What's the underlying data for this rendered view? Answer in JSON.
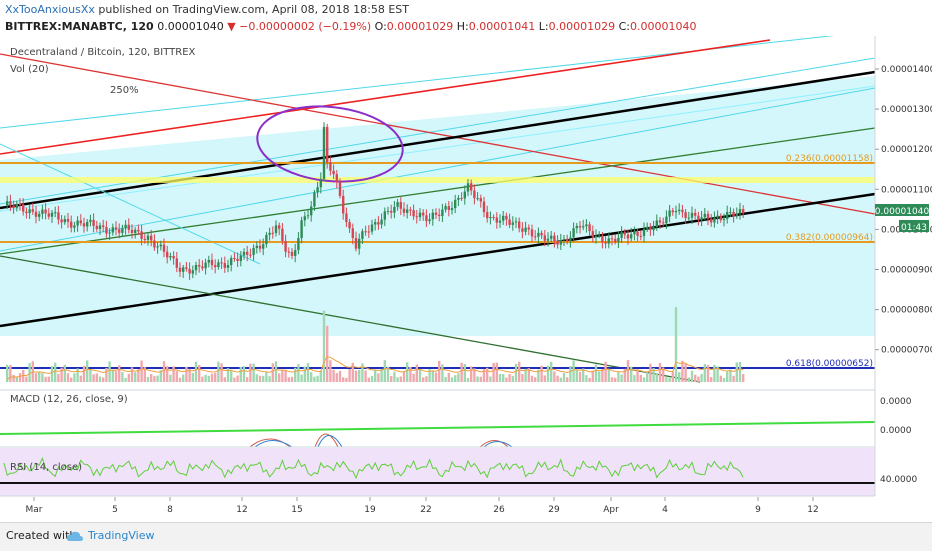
{
  "header": {
    "author": "XxTooAnxiousXx",
    "published_text": "published on TradingView.com, April 08, 2018 18:58 EST",
    "symbol": "BITTREX:MANABTC, 120",
    "last": "0.00001040",
    "change": "−0.00000002 (−0.19%)",
    "o_label": "O:",
    "o": "0.00001029",
    "h_label": "H:",
    "h": "0.00001041",
    "l_label": "L:",
    "l": "0.00001029",
    "c_label": "C:",
    "c": "0.00001040"
  },
  "footer": {
    "created_with": "Created with",
    "brand": "TradingView"
  },
  "colors": {
    "up": "#2e8b57",
    "down": "#d84451",
    "fib_orange": "#e69b1e",
    "fib_blue": "#1f2fb5",
    "channel_cyan": "#5fd6e8",
    "fill_cyan": "#d4f7fb",
    "rsi_line": "#5fcf3a",
    "rsi_bg": "#efe2f9",
    "macd_line": "#3fdc3f"
  },
  "chart_data": {
    "type": "candlestick",
    "title": "Decentraland / Bitcoin, 120, BITTREX",
    "indicator_volume": "Vol (20)",
    "annotation_percent": "250%",
    "price_range": [
      6.4e-06,
      1.46e-05
    ],
    "y_ticks": [
      "0.00001400",
      "0.00001300",
      "0.00001200",
      "0.00001100",
      "0.00001000",
      "0.00000900",
      "0.00000800",
      "0.00000700"
    ],
    "last_price_label": "0.00001040",
    "countdown_label": "01:43",
    "fib_levels": [
      {
        "label": "0.236(0.00001158)",
        "value": 1.158e-05
      },
      {
        "label": "0.382(0.00000964)",
        "value": 9.64e-06
      },
      {
        "label": "0.618(0.00000652)",
        "value": 6.52e-06
      }
    ],
    "x_ticks": [
      "Mar",
      "5",
      "8",
      "12",
      "15",
      "19",
      "22",
      "26",
      "29",
      "Apr",
      "4",
      "9",
      "12"
    ],
    "price_path": [
      [
        0,
        1060
      ],
      [
        10,
        1045
      ],
      [
        20,
        1020
      ],
      [
        30,
        1005
      ],
      [
        40,
        995
      ],
      [
        45,
        982
      ],
      [
        50,
        940
      ],
      [
        55,
        905
      ],
      [
        60,
        900
      ],
      [
        65,
        915
      ],
      [
        70,
        918
      ],
      [
        75,
        930
      ],
      [
        80,
        965
      ],
      [
        85,
        1005
      ],
      [
        88,
        950
      ],
      [
        90,
        930
      ],
      [
        93,
        1020
      ],
      [
        96,
        1055
      ],
      [
        98,
        1100
      ],
      [
        99,
        1130
      ],
      [
        100,
        1250
      ],
      [
        101,
        1160
      ],
      [
        103,
        1150
      ],
      [
        106,
        1050
      ],
      [
        108,
        990
      ],
      [
        110,
        955
      ],
      [
        113,
        1000
      ],
      [
        118,
        1030
      ],
      [
        123,
        1055
      ],
      [
        128,
        1045
      ],
      [
        133,
        1020
      ],
      [
        138,
        1055
      ],
      [
        142,
        1075
      ],
      [
        145,
        1100
      ],
      [
        148,
        1075
      ],
      [
        152,
        1030
      ],
      [
        158,
        1015
      ],
      [
        163,
        1005
      ],
      [
        167,
        980
      ],
      [
        170,
        972
      ],
      [
        175,
        975
      ],
      [
        180,
        1008
      ],
      [
        185,
        985
      ],
      [
        190,
        970
      ],
      [
        194,
        982
      ],
      [
        197,
        990
      ],
      [
        200,
        1000
      ],
      [
        205,
        1010
      ],
      [
        210,
        1060
      ],
      [
        212,
        1040
      ],
      [
        216,
        1025
      ],
      [
        220,
        1030
      ],
      [
        228,
        1035
      ],
      [
        231,
        1040
      ]
    ],
    "volume_spikes": [
      {
        "x": 100,
        "value": 0.95
      },
      {
        "x": 101,
        "value": 0.75
      },
      {
        "x": 210,
        "value": 1.0
      }
    ],
    "macd": {
      "label": "MACD (12, 26, close, 9)",
      "y_ticks": [
        "0.0000",
        "0.0000"
      ]
    },
    "rsi": {
      "label": "RSI (14, close)",
      "y_ticks": [
        "40.0000"
      ]
    }
  }
}
